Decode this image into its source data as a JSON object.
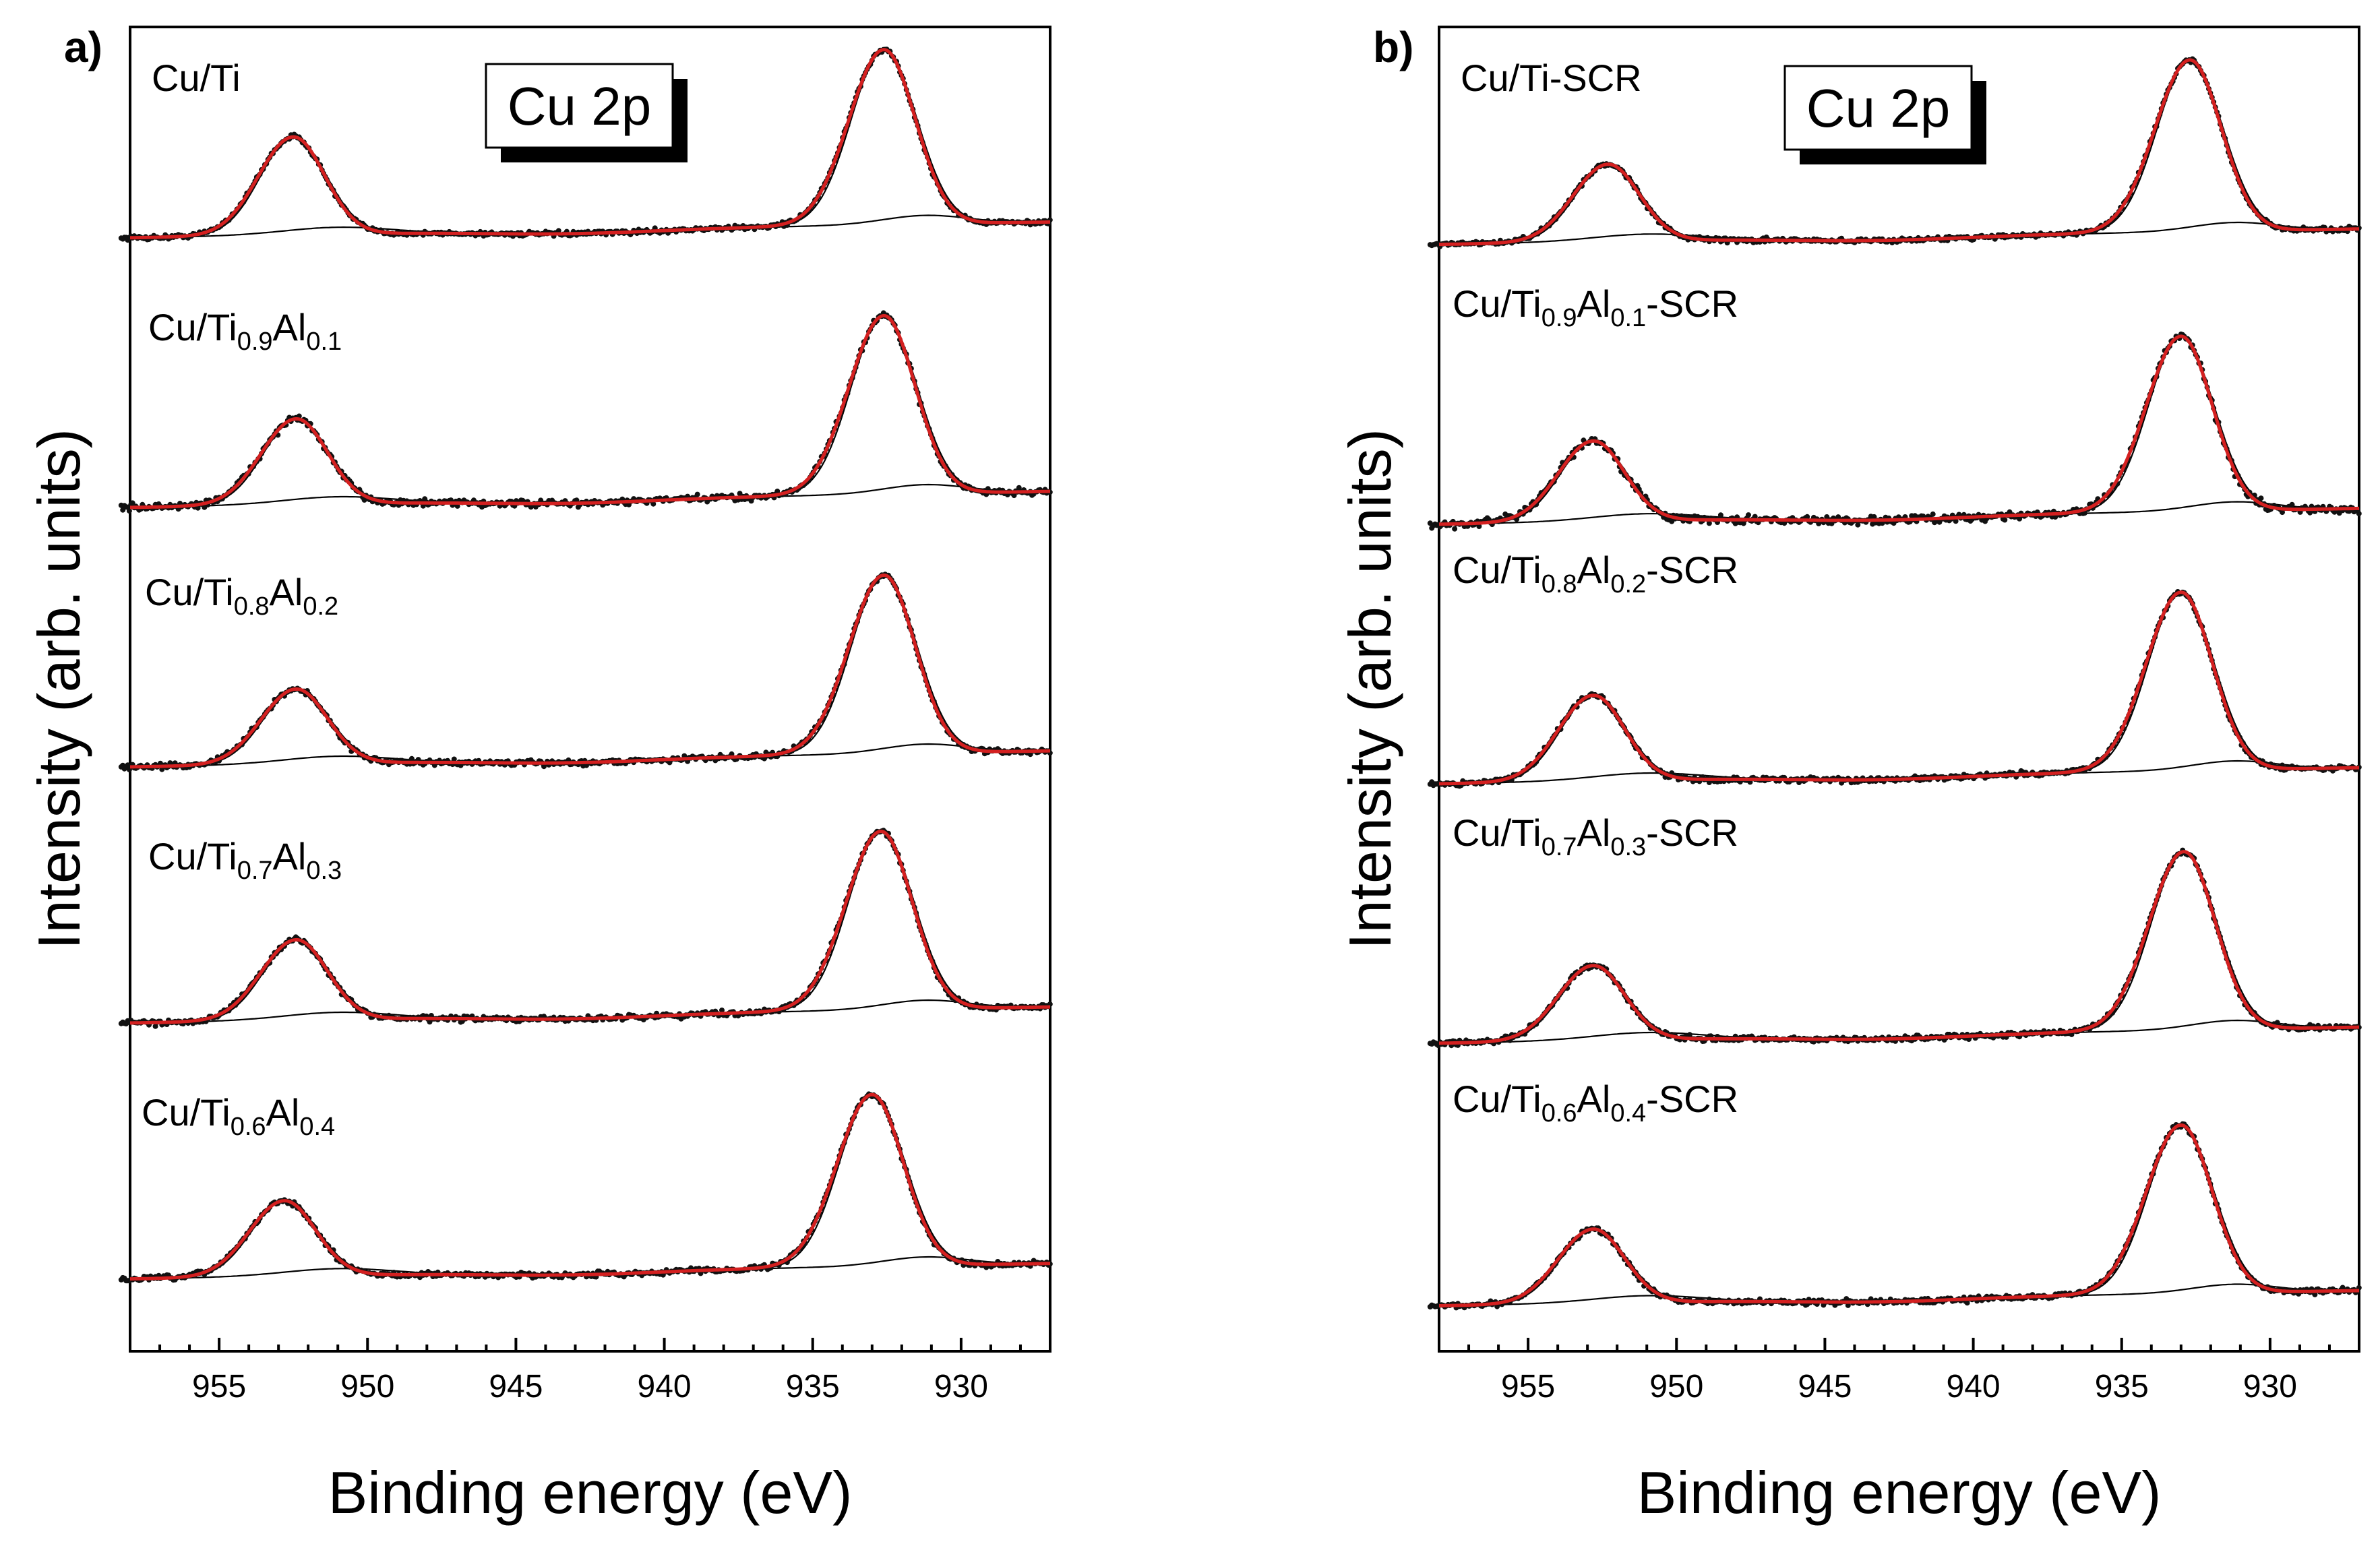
{
  "chart_data": [
    {
      "type": "line",
      "panel_label": "a)",
      "xlabel": "Binding energy (eV)",
      "ylabel": "Intensity (arb. units)",
      "xlim": [
        958,
        927
      ],
      "x_reversed": true,
      "xticks": [
        "955",
        "950",
        "945",
        "940",
        "935",
        "930"
      ],
      "inset_label": "Cu 2p",
      "series": [
        {
          "name_parts": [
            [
              "Cu/Ti",
              false
            ]
          ],
          "peaks": [
            {
              "center": 952.5,
              "height": 0.56
            },
            {
              "center": 932.6,
              "height": 1.0
            }
          ],
          "noise": 0.012
        },
        {
          "name_parts": [
            [
              "Cu/Ti",
              false
            ],
            [
              "0.9",
              true
            ],
            [
              "Al",
              false
            ],
            [
              "0.1",
              true
            ]
          ],
          "peaks": [
            {
              "center": 952.4,
              "height": 0.48
            },
            {
              "center": 932.6,
              "height": 1.0
            }
          ],
          "noise": 0.018
        },
        {
          "name_parts": [
            [
              "Cu/Ti",
              false
            ],
            [
              "0.8",
              true
            ],
            [
              "Al",
              false
            ],
            [
              "0.2",
              true
            ]
          ],
          "peaks": [
            {
              "center": 952.4,
              "height": 0.42
            },
            {
              "center": 932.6,
              "height": 1.0
            }
          ],
          "noise": 0.014
        },
        {
          "name_parts": [
            [
              "Cu/Ti",
              false
            ],
            [
              "0.7",
              true
            ],
            [
              "Al",
              false
            ],
            [
              "0.3",
              true
            ]
          ],
          "peaks": [
            {
              "center": 952.4,
              "height": 0.45
            },
            {
              "center": 932.7,
              "height": 1.0
            }
          ],
          "noise": 0.014
        },
        {
          "name_parts": [
            [
              "Cu/Ti",
              false
            ],
            [
              "0.6",
              true
            ],
            [
              "Al",
              false
            ],
            [
              "0.4",
              true
            ]
          ],
          "peaks": [
            {
              "center": 952.8,
              "height": 0.44
            },
            {
              "center": 933.0,
              "height": 1.0
            }
          ],
          "noise": 0.014
        }
      ]
    },
    {
      "type": "line",
      "panel_label": "b)",
      "xlabel": "Binding energy (eV)",
      "ylabel": "Intensity (arb. units)",
      "xlim": [
        958,
        927
      ],
      "x_reversed": true,
      "xticks": [
        "955",
        "950",
        "945",
        "940",
        "935",
        "930"
      ],
      "inset_label": "Cu 2p",
      "series": [
        {
          "name_parts": [
            [
              "Cu/Ti-SCR",
              false
            ]
          ],
          "peaks": [
            {
              "center": 952.3,
              "height": 0.45
            },
            {
              "center": 932.7,
              "height": 1.0
            }
          ],
          "noise": 0.012
        },
        {
          "name_parts": [
            [
              "Cu/Ti",
              false
            ],
            [
              "0.9",
              true
            ],
            [
              "Al",
              false
            ],
            [
              "0.1",
              true
            ],
            [
              "-SCR",
              false
            ]
          ],
          "peaks": [
            {
              "center": 952.8,
              "height": 0.46
            },
            {
              "center": 933.0,
              "height": 1.0
            }
          ],
          "noise": 0.022
        },
        {
          "name_parts": [
            [
              "Cu/Ti",
              false
            ],
            [
              "0.8",
              true
            ],
            [
              "Al",
              false
            ],
            [
              "0.2",
              true
            ],
            [
              "-SCR",
              false
            ]
          ],
          "peaks": [
            {
              "center": 952.8,
              "height": 0.48
            },
            {
              "center": 933.0,
              "height": 1.0
            }
          ],
          "noise": 0.014
        },
        {
          "name_parts": [
            [
              "Cu/Ti",
              false
            ],
            [
              "0.7",
              true
            ],
            [
              "Al",
              false
            ],
            [
              "0.3",
              true
            ],
            [
              "-SCR",
              false
            ]
          ],
          "peaks": [
            {
              "center": 952.8,
              "height": 0.42
            },
            {
              "center": 932.9,
              "height": 1.0
            }
          ],
          "noise": 0.014
        },
        {
          "name_parts": [
            [
              "Cu/Ti",
              false
            ],
            [
              "0.6",
              true
            ],
            [
              "Al",
              false
            ],
            [
              "0.4",
              true
            ],
            [
              "-SCR",
              false
            ]
          ],
          "peaks": [
            {
              "center": 952.8,
              "height": 0.44
            },
            {
              "center": 933.0,
              "height": 1.0
            }
          ],
          "noise": 0.014
        }
      ]
    }
  ]
}
